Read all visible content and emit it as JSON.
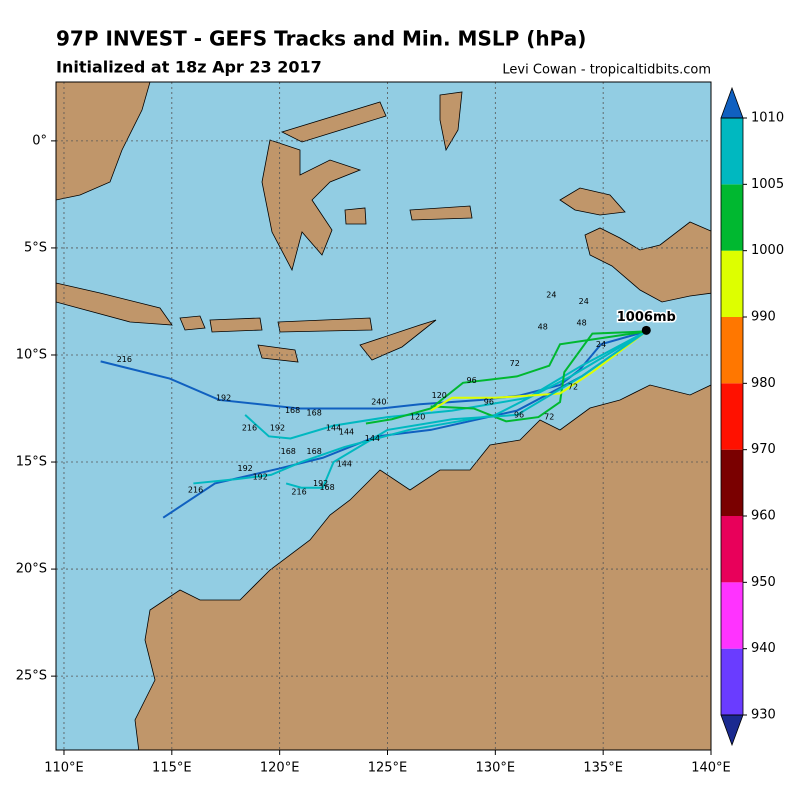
{
  "chart_data": {
    "type": "track-map",
    "title": "97P INVEST - GEFS Tracks and Min. MSLP (hPa)",
    "subtitle": "Initialized at 18z Apr 23 2017",
    "credit": "Levi Cowan - tropicaltidbits.com",
    "xlim": [
      109.63,
      140
    ],
    "ylim": [
      -28.45,
      2.75
    ],
    "xticks": [
      {
        "value": 110,
        "label": "110°E"
      },
      {
        "value": 115,
        "label": "115°E"
      },
      {
        "value": 120,
        "label": "120°E"
      },
      {
        "value": 125,
        "label": "125°E"
      },
      {
        "value": 130,
        "label": "130°E"
      },
      {
        "value": 135,
        "label": "135°E"
      },
      {
        "value": 140,
        "label": "140°E"
      }
    ],
    "yticks": [
      {
        "value": 0,
        "label": "0°"
      },
      {
        "value": -5,
        "label": "5°S"
      },
      {
        "value": -10,
        "label": "10°S"
      },
      {
        "value": -15,
        "label": "15°S"
      },
      {
        "value": -20,
        "label": "20°S"
      },
      {
        "value": -25,
        "label": "25°S"
      }
    ],
    "grid": true,
    "colorbar": {
      "levels": [
        930,
        940,
        950,
        960,
        970,
        980,
        990,
        1000,
        1005,
        1010
      ],
      "colors": [
        "#6a3cff",
        "#ff33ff",
        "#e8005a",
        "#7a0000",
        "#ff1100",
        "#ff7700",
        "#ddff00",
        "#00b830",
        "#00b8c0"
      ],
      "extend_colors": [
        "#1a2a90",
        "#1060c0"
      ]
    },
    "current": {
      "lon": 137.0,
      "lat": -8.85,
      "label": "1006mb"
    },
    "tracks": [
      {
        "color": "#1060c0",
        "lon": [
          137,
          134.9,
          133.9,
          133,
          131.1,
          129.3,
          126.5,
          124.7,
          120.9,
          117.2,
          114.9,
          111.7
        ],
        "lat": [
          -8.9,
          -9.5,
          -10.7,
          -11.4,
          -11.9,
          -12.1,
          -12.3,
          -12.5,
          -12.5,
          -12.1,
          -11.1,
          -10.3
        ],
        "labels": [
          {
            "lon": 112.8,
            "lat": -10.2,
            "hour": 216
          },
          {
            "lon": 117.4,
            "lat": -12.0,
            "hour": 192
          },
          {
            "lon": 120.6,
            "lat": -12.6,
            "hour": 168
          },
          {
            "lon": 124.6,
            "lat": -12.2,
            "hour": 240
          }
        ]
      },
      {
        "color": "#00b8c0",
        "lon": [
          137,
          134,
          131.5,
          128,
          125,
          122.5,
          120.5,
          119.5,
          118.4
        ],
        "lat": [
          -8.9,
          -10.5,
          -12,
          -12.6,
          -12.9,
          -13.3,
          -13.9,
          -13.8,
          -12.8
        ],
        "labels": [
          {
            "lon": 122.5,
            "lat": -13.4,
            "hour": 144
          },
          {
            "lon": 121.6,
            "lat": -12.7,
            "hour": 168
          },
          {
            "lon": 119.9,
            "lat": -13.4,
            "hour": 192
          },
          {
            "lon": 118.6,
            "lat": -13.4,
            "hour": 216
          },
          {
            "lon": 126.4,
            "lat": -12.9,
            "hour": 120
          }
        ]
      },
      {
        "color": "#1060c0",
        "lon": [
          137,
          134,
          131,
          127,
          124.5,
          122,
          120,
          117,
          114.6
        ],
        "lat": [
          -8.9,
          -11,
          -12.6,
          -13.5,
          -13.8,
          -14.8,
          -15.3,
          -16,
          -17.6
        ],
        "labels": [
          {
            "lon": 121.6,
            "lat": -14.5,
            "hour": 168
          },
          {
            "lon": 119.1,
            "lat": -15.7,
            "hour": 192
          },
          {
            "lon": 116.1,
            "lat": -16.3,
            "hour": 216
          },
          {
            "lon": 123.1,
            "lat": -13.6,
            "hour": 144
          }
        ]
      },
      {
        "color": "#00b8c0",
        "lon": [
          137,
          133.5,
          130,
          126,
          123,
          121,
          119.6,
          118,
          116
        ],
        "lat": [
          -8.9,
          -11,
          -12.8,
          -13.5,
          -14.3,
          -15,
          -15.6,
          -15.8,
          -16.0
        ],
        "labels": [
          {
            "lon": 118.4,
            "lat": -15.3,
            "hour": 192
          },
          {
            "lon": 120.4,
            "lat": -14.5,
            "hour": 168
          },
          {
            "lon": 124.3,
            "lat": -13.9,
            "hour": 144
          }
        ]
      },
      {
        "color": "#00b830",
        "lon": [
          137,
          135,
          133,
          132.5,
          131,
          128.5,
          127,
          125.2,
          124
        ],
        "lat": [
          -8.9,
          -9.2,
          -9.5,
          -10.5,
          -11,
          -11.3,
          -12.5,
          -13,
          -13.2
        ],
        "labels": [
          {
            "lon": 132.6,
            "lat": -7.2,
            "hour": 24
          },
          {
            "lon": 132.2,
            "lat": -8.7,
            "hour": 48
          },
          {
            "lon": 130.9,
            "lat": -10.4,
            "hour": 72
          },
          {
            "lon": 128.9,
            "lat": -11.2,
            "hour": 96
          },
          {
            "lon": 127.4,
            "lat": -11.9,
            "hour": 120
          }
        ]
      },
      {
        "color": "#00b830",
        "lon": [
          137,
          134.5,
          133.2,
          133,
          132,
          130.5,
          129,
          127
        ],
        "lat": [
          -8.9,
          -9,
          -10.8,
          -12.2,
          -12.9,
          -13.1,
          -12.5,
          -12.4
        ],
        "labels": [
          {
            "lon": 134.1,
            "lat": -7.5,
            "hour": 24
          },
          {
            "lon": 134.0,
            "lat": -8.5,
            "hour": 48
          },
          {
            "lon": 132.5,
            "lat": -12.9,
            "hour": 72
          },
          {
            "lon": 131.1,
            "lat": -12.8,
            "hour": 96
          }
        ]
      },
      {
        "color": "#ddff00",
        "lon": [
          137,
          134.5,
          133,
          130,
          128,
          127
        ],
        "lat": [
          -8.9,
          -10.8,
          -11.8,
          -12,
          -12,
          -12.6
        ],
        "labels": [
          {
            "lon": 133.6,
            "lat": -11.5,
            "hour": 72
          },
          {
            "lon": 129.7,
            "lat": -12.2,
            "hour": 96
          }
        ]
      },
      {
        "color": "#00b8c0",
        "lon": [
          137,
          134,
          131,
          128,
          125,
          122.5,
          122,
          121,
          120.3
        ],
        "lat": [
          -8.9,
          -11,
          -12.8,
          -13,
          -13.5,
          -15,
          -16.2,
          -16.2,
          -16
        ],
        "labels": [
          {
            "lon": 123.0,
            "lat": -15.1,
            "hour": 144
          },
          {
            "lon": 121.9,
            "lat": -16.0,
            "hour": 192
          },
          {
            "lon": 120.9,
            "lat": -16.4,
            "hour": 216
          },
          {
            "lon": 122.2,
            "lat": -16.2,
            "hour": 168
          },
          {
            "lon": 134.9,
            "lat": -9.5,
            "hour": 24
          }
        ]
      }
    ]
  }
}
